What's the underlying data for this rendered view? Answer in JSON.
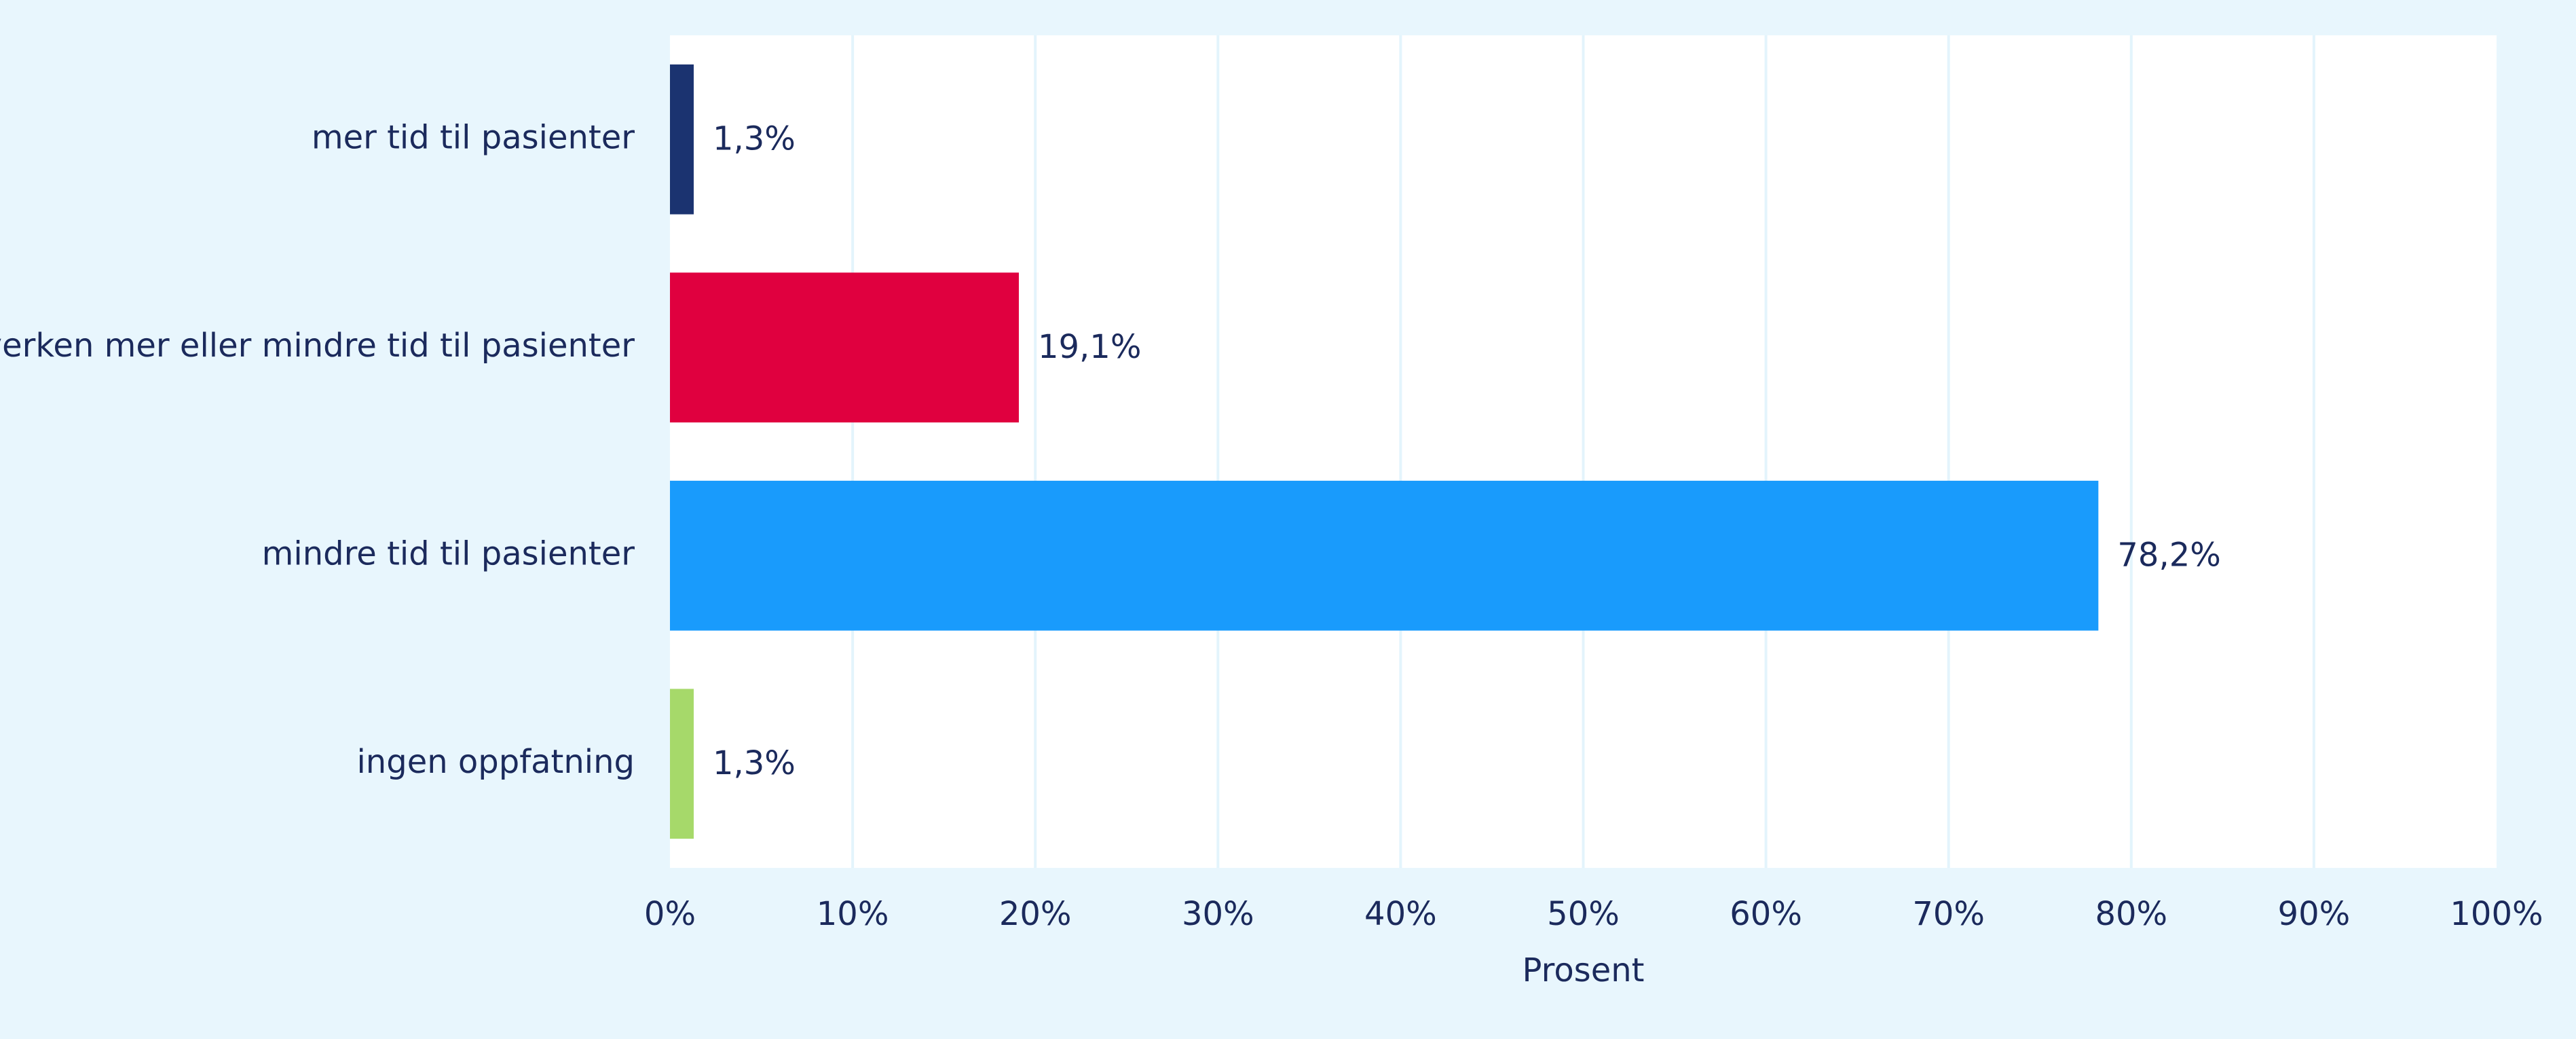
{
  "chart_data": {
    "type": "bar",
    "orientation": "horizontal",
    "categories": [
      "mer tid til pasienter",
      "verken mer eller mindre tid til pasienter",
      "mindre tid til pasienter",
      "ingen oppfatning"
    ],
    "values": [
      1.3,
      19.1,
      78.2,
      1.3
    ],
    "data_labels": [
      "1,3%",
      "19,1%",
      "78,2%",
      "1,3%"
    ],
    "colors": [
      "#1b3370",
      "#e0003f",
      "#199bfc",
      "#a6d96a"
    ],
    "xlabel": "Prosent",
    "ylabel": "",
    "title": "",
    "xlim": [
      0,
      100
    ],
    "x_ticks": [
      0,
      10,
      20,
      30,
      40,
      50,
      60,
      70,
      80,
      90,
      100
    ],
    "x_tick_labels": [
      "0%",
      "10%",
      "20%",
      "30%",
      "40%",
      "50%",
      "60%",
      "70%",
      "80%",
      "90%",
      "100%"
    ],
    "grid": "vertical",
    "legend": "none"
  },
  "style": {
    "background": "#e8f6fd",
    "plot_background": "#ffffff",
    "grid_color": "#e3f4fc",
    "text_color": "#1b2a5c"
  }
}
